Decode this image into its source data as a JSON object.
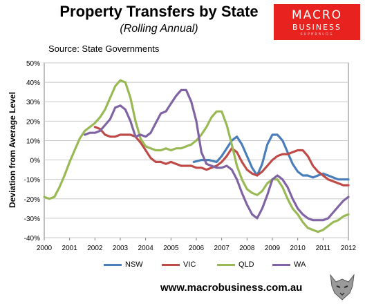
{
  "header": {
    "title": "Property Transfers by State",
    "subtitle": "(Rolling Annual)",
    "source": "Source: State Governments"
  },
  "logo": {
    "line1": "MACRO",
    "line2": "BUSINESS",
    "line3": "SUPERBLOG",
    "color": "#e8231f"
  },
  "footer": {
    "url": "www.macrobusiness.com.au"
  },
  "chart_data": {
    "type": "line",
    "title": "Property Transfers by State",
    "ylabel": "Deviation from Average Level",
    "xlabel": "",
    "xlim": [
      2000,
      2012
    ],
    "ylim": [
      -40,
      50
    ],
    "x_ticks": [
      "2000",
      "2001",
      "2002",
      "2003",
      "2004",
      "2005",
      "2006",
      "2007",
      "2008",
      "2009",
      "2010",
      "2011",
      "2012"
    ],
    "y_ticks": [
      "50%",
      "40%",
      "30%",
      "20%",
      "10%",
      "0%",
      "-10%",
      "-20%",
      "-30%",
      "-40%"
    ],
    "grid": true,
    "legend_position": "bottom",
    "series": [
      {
        "name": "NSW",
        "color": "#4a7ebb",
        "x": [
          2005.9,
          2006.2,
          2006.5,
          2006.8,
          2007.0,
          2007.2,
          2007.4,
          2007.6,
          2007.8,
          2008.0,
          2008.2,
          2008.4,
          2008.6,
          2008.8,
          2009.0,
          2009.2,
          2009.4,
          2009.6,
          2009.8,
          2010.0,
          2010.2,
          2010.4,
          2010.6,
          2010.8,
          2011.0,
          2011.2,
          2011.4,
          2011.6,
          2011.8,
          2012.0
        ],
        "y": [
          -1,
          0,
          0,
          -1,
          2,
          6,
          10,
          12,
          8,
          2,
          -4,
          -8,
          -2,
          8,
          13,
          13,
          10,
          4,
          -2,
          -6,
          -8,
          -8,
          -9,
          -8,
          -7,
          -8,
          -9,
          -10,
          -10,
          -10
        ]
      },
      {
        "name": "VIC",
        "color": "#be4b48",
        "x": [
          2002.0,
          2002.2,
          2002.4,
          2002.6,
          2002.8,
          2003.0,
          2003.2,
          2003.4,
          2003.6,
          2003.8,
          2004.0,
          2004.2,
          2004.4,
          2004.6,
          2004.8,
          2005.0,
          2005.2,
          2005.4,
          2005.6,
          2005.8,
          2006.0,
          2006.2,
          2006.4,
          2006.6,
          2006.8,
          2007.0,
          2007.2,
          2007.4,
          2007.6,
          2007.8,
          2008.0,
          2008.2,
          2008.4,
          2008.6,
          2008.8,
          2009.0,
          2009.2,
          2009.4,
          2009.6,
          2009.8,
          2010.0,
          2010.2,
          2010.4,
          2010.6,
          2010.8,
          2011.0,
          2011.2,
          2011.4,
          2011.6,
          2011.8,
          2012.0
        ],
        "y": [
          17,
          16,
          13,
          12,
          12,
          13,
          13,
          13,
          12,
          9,
          5,
          1,
          -1,
          -1,
          -2,
          -1,
          -2,
          -3,
          -3,
          -3,
          -4,
          -4,
          -5,
          -4,
          -3,
          -1,
          2,
          6,
          4,
          -1,
          -5,
          -7,
          -8,
          -6,
          -3,
          0,
          2,
          3,
          3,
          4,
          5,
          5,
          2,
          -3,
          -6,
          -8,
          -10,
          -11,
          -12,
          -13,
          -13
        ]
      },
      {
        "name": "QLD",
        "color": "#98b954",
        "x": [
          2000.0,
          2000.2,
          2000.4,
          2000.6,
          2000.8,
          2001.0,
          2001.2,
          2001.4,
          2001.6,
          2001.8,
          2002.0,
          2002.2,
          2002.4,
          2002.6,
          2002.8,
          2003.0,
          2003.2,
          2003.4,
          2003.6,
          2003.8,
          2004.0,
          2004.2,
          2004.4,
          2004.6,
          2004.8,
          2005.0,
          2005.2,
          2005.4,
          2005.6,
          2005.8,
          2006.0,
          2006.2,
          2006.4,
          2006.6,
          2006.8,
          2007.0,
          2007.2,
          2007.4,
          2007.6,
          2007.8,
          2008.0,
          2008.2,
          2008.4,
          2008.6,
          2008.8,
          2009.0,
          2009.2,
          2009.4,
          2009.6,
          2009.8,
          2010.0,
          2010.2,
          2010.4,
          2010.6,
          2010.8,
          2011.0,
          2011.2,
          2011.4,
          2011.6,
          2011.8,
          2012.0
        ],
        "y": [
          -19,
          -20,
          -19,
          -14,
          -8,
          -1,
          5,
          11,
          15,
          17,
          19,
          22,
          26,
          32,
          38,
          41,
          40,
          32,
          20,
          11,
          7,
          6,
          5,
          5,
          6,
          5,
          6,
          6,
          7,
          8,
          10,
          13,
          17,
          22,
          25,
          25,
          18,
          8,
          -3,
          -10,
          -15,
          -17,
          -18,
          -16,
          -12,
          -10,
          -10,
          -14,
          -20,
          -25,
          -28,
          -32,
          -35,
          -36,
          -37,
          -36,
          -34,
          -32,
          -31,
          -29,
          -28
        ]
      },
      {
        "name": "WA",
        "color": "#7f63a2",
        "x": [
          2001.6,
          2001.8,
          2002.0,
          2002.2,
          2002.4,
          2002.6,
          2002.8,
          2003.0,
          2003.2,
          2003.4,
          2003.6,
          2003.8,
          2004.0,
          2004.2,
          2004.4,
          2004.6,
          2004.8,
          2005.0,
          2005.2,
          2005.4,
          2005.6,
          2005.8,
          2006.0,
          2006.2,
          2006.4,
          2006.6,
          2006.8,
          2007.0,
          2007.2,
          2007.4,
          2007.6,
          2007.8,
          2008.0,
          2008.2,
          2008.4,
          2008.6,
          2008.8,
          2009.0,
          2009.2,
          2009.4,
          2009.6,
          2009.8,
          2010.0,
          2010.2,
          2010.4,
          2010.6,
          2010.8,
          2011.0,
          2011.2,
          2011.4,
          2011.6,
          2011.8,
          2012.0
        ],
        "y": [
          13,
          14,
          14,
          15,
          18,
          21,
          27,
          28,
          26,
          20,
          12,
          13,
          12,
          14,
          19,
          24,
          25,
          29,
          33,
          36,
          36,
          30,
          20,
          4,
          -2,
          -3,
          -4,
          -4,
          -3,
          -5,
          -10,
          -17,
          -23,
          -28,
          -30,
          -25,
          -18,
          -10,
          -8,
          -10,
          -14,
          -20,
          -25,
          -28,
          -30,
          -31,
          -31,
          -31,
          -30,
          -27,
          -24,
          -21,
          -19
        ]
      }
    ]
  }
}
